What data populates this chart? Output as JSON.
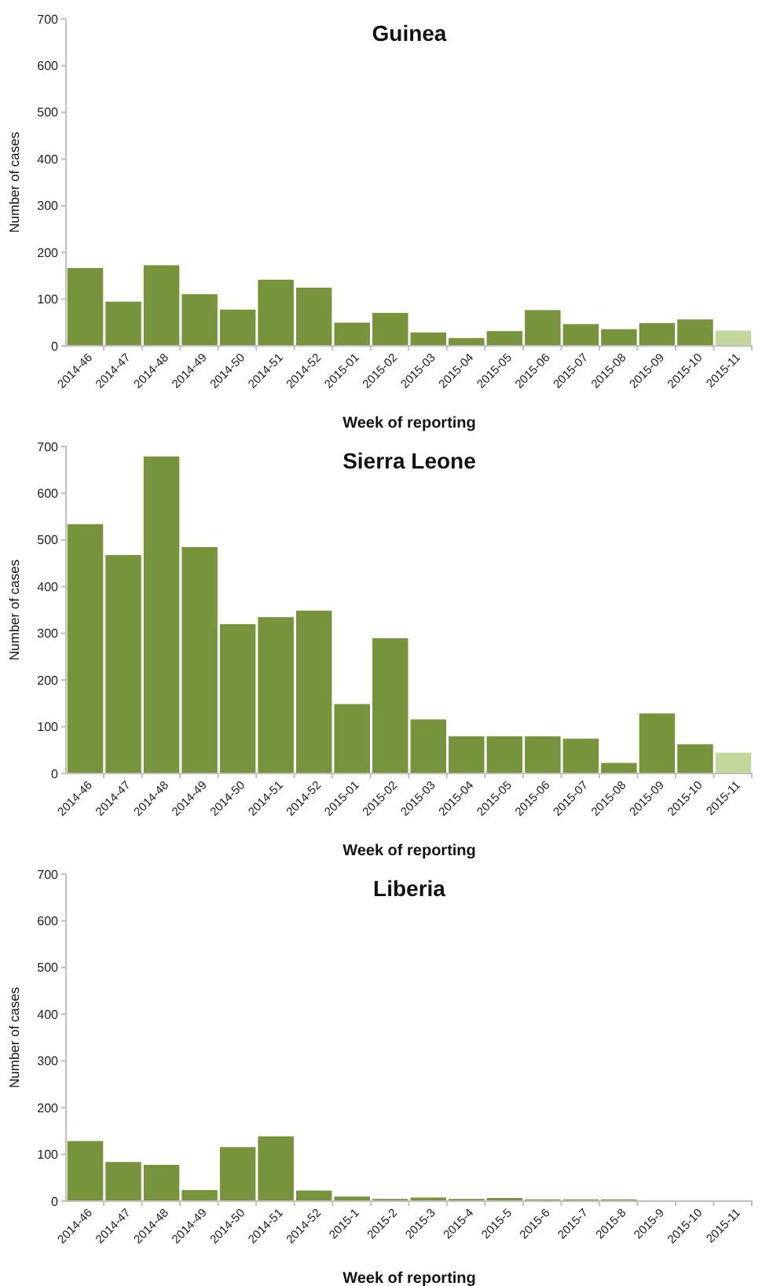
{
  "chart_data": [
    {
      "type": "bar",
      "title": "Guinea",
      "xlabel": "Week of reporting",
      "ylabel": "Number of cases",
      "categories": [
        "2014-46",
        "2014-47",
        "2014-48",
        "2014-49",
        "2014-50",
        "2014-51",
        "2014-52",
        "2015-01",
        "2015-02",
        "2015-03",
        "2015-04",
        "2015-05",
        "2015-06",
        "2015-07",
        "2015-08",
        "2015-09",
        "2015-10",
        "2015-11"
      ],
      "values": [
        168,
        96,
        174,
        112,
        79,
        143,
        126,
        51,
        72,
        30,
        18,
        33,
        78,
        48,
        37,
        50,
        58,
        34
      ],
      "colors": [
        "#77933c",
        "#77933c",
        "#77933c",
        "#77933c",
        "#77933c",
        "#77933c",
        "#77933c",
        "#77933c",
        "#77933c",
        "#77933c",
        "#77933c",
        "#77933c",
        "#77933c",
        "#77933c",
        "#77933c",
        "#77933c",
        "#77933c",
        "#c3d69b"
      ],
      "ylim": [
        0,
        700
      ],
      "yticks": [
        0,
        100,
        200,
        300,
        400,
        500,
        600,
        700
      ],
      "grid": false
    },
    {
      "type": "bar",
      "title": "Sierra Leone",
      "xlabel": "Week of reporting",
      "ylabel": "Number of cases",
      "categories": [
        "2014-46",
        "2014-47",
        "2014-48",
        "2014-49",
        "2014-50",
        "2014-51",
        "2014-52",
        "2015-01",
        "2015-02",
        "2015-03",
        "2015-04",
        "2015-05",
        "2015-06",
        "2015-07",
        "2015-08",
        "2015-09",
        "2015-10",
        "2015-11"
      ],
      "values": [
        535,
        469,
        680,
        486,
        321,
        336,
        350,
        150,
        291,
        117,
        81,
        81,
        81,
        76,
        24,
        130,
        64,
        46
      ],
      "colors": [
        "#77933c",
        "#77933c",
        "#77933c",
        "#77933c",
        "#77933c",
        "#77933c",
        "#77933c",
        "#77933c",
        "#77933c",
        "#77933c",
        "#77933c",
        "#77933c",
        "#77933c",
        "#77933c",
        "#77933c",
        "#77933c",
        "#77933c",
        "#c3d69b"
      ],
      "ylim": [
        0,
        700
      ],
      "yticks": [
        0,
        100,
        200,
        300,
        400,
        500,
        600,
        700
      ],
      "grid": false
    },
    {
      "type": "bar",
      "title": "Liberia",
      "xlabel": "Week of reporting",
      "ylabel": "Number of cases",
      "categories": [
        "2014-46",
        "2014-47",
        "2014-48",
        "2014-49",
        "2014-50",
        "2014-51",
        "2014-52",
        "2015-1",
        "2015-2",
        "2015-3",
        "2015-4",
        "2015-5",
        "2015-6",
        "2015-7",
        "2015-8",
        "2015-9",
        "2015-10",
        "2015-11"
      ],
      "values": [
        130,
        85,
        79,
        25,
        117,
        140,
        24,
        11,
        6,
        9,
        6,
        8,
        5,
        5,
        5,
        0,
        0,
        0
      ],
      "color": "#77933c",
      "ylim": [
        0,
        700
      ],
      "yticks": [
        0,
        100,
        200,
        300,
        400,
        500,
        600,
        700
      ],
      "grid": false
    }
  ]
}
